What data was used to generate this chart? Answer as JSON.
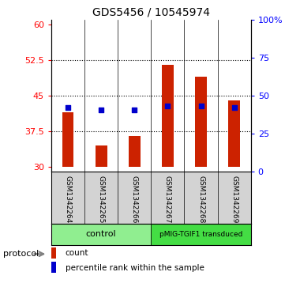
{
  "title": "GDS5456 / 10545974",
  "samples": [
    "GSM1342264",
    "GSM1342265",
    "GSM1342266",
    "GSM1342267",
    "GSM1342268",
    "GSM1342269"
  ],
  "counts": [
    41.5,
    34.5,
    36.5,
    51.5,
    49.0,
    44.0
  ],
  "percentile_ranks": [
    42.5,
    40.5,
    40.5,
    43.5,
    43.5,
    42.5
  ],
  "count_base": 30,
  "ylim_left": [
    29,
    61
  ],
  "ylim_right": [
    0,
    100
  ],
  "yticks_left": [
    30,
    37.5,
    45,
    52.5,
    60
  ],
  "yticks_right": [
    0,
    25,
    50,
    75,
    100
  ],
  "ytick_labels_left": [
    "30",
    "37.5",
    "45",
    "52.5",
    "60"
  ],
  "ytick_labels_right": [
    "0",
    "25",
    "50",
    "75",
    "100%"
  ],
  "bar_color": "#CC2200",
  "dot_color": "#0000CC",
  "protocol_label": "protocol",
  "legend_count": "count",
  "legend_pct": "percentile rank within the sample",
  "bar_width": 0.35,
  "bg_label": "#D3D3D3",
  "bg_protocol_control": "#90EE90",
  "bg_protocol_transduced": "#44DD44",
  "ctrl_label": "control",
  "trans_label": "pMIG-TGIF1 transduced"
}
